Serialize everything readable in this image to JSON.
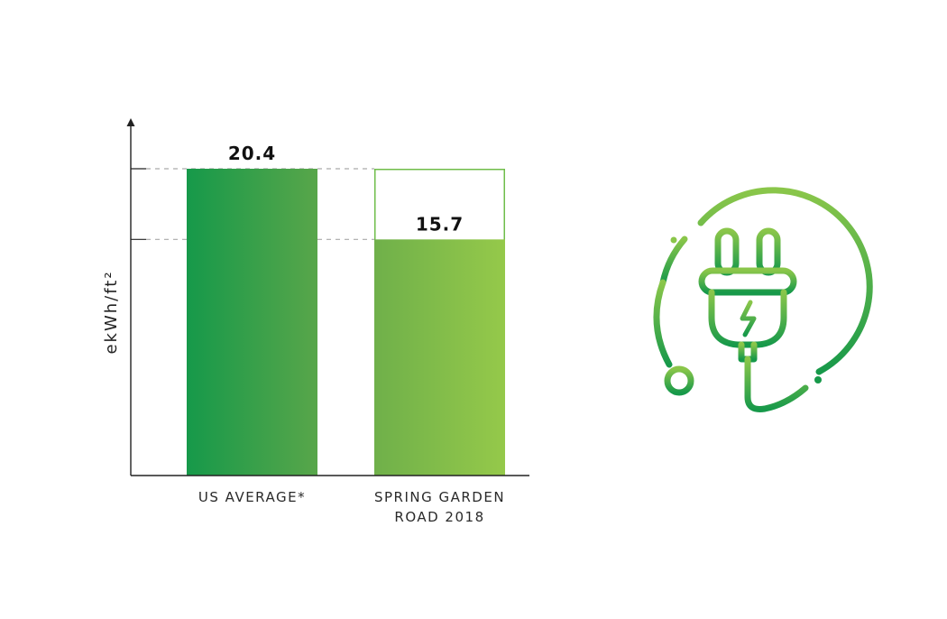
{
  "chart_data": {
    "type": "bar",
    "title": "",
    "xlabel": "",
    "ylabel": "ekWh/ft²",
    "categories": [
      "US AVERAGE*",
      "SPRING GARDEN ROAD 2018"
    ],
    "category_lines": [
      [
        "US AVERAGE*"
      ],
      [
        "SPRING GARDEN",
        "ROAD 2018"
      ]
    ],
    "values": [
      20.4,
      15.7
    ],
    "value_labels": [
      "20.4",
      "15.7"
    ],
    "reference_outline_value": 20.4,
    "reference_lines": [
      20.4,
      15.7
    ],
    "ylim": [
      0,
      20.4
    ],
    "grid": false,
    "legend": "none",
    "colors": {
      "bar_1_gradient": [
        "#16994a",
        "#58a64a"
      ],
      "bar_2_gradient": [
        "#6fb04a",
        "#95c94a"
      ],
      "outline": "#6fbd4a",
      "axis": "#222222",
      "reference_line": "#aaaaaa"
    }
  },
  "icon": {
    "name": "power-plug-icon",
    "gradient": [
      "#8ac64a",
      "#17994a"
    ]
  }
}
